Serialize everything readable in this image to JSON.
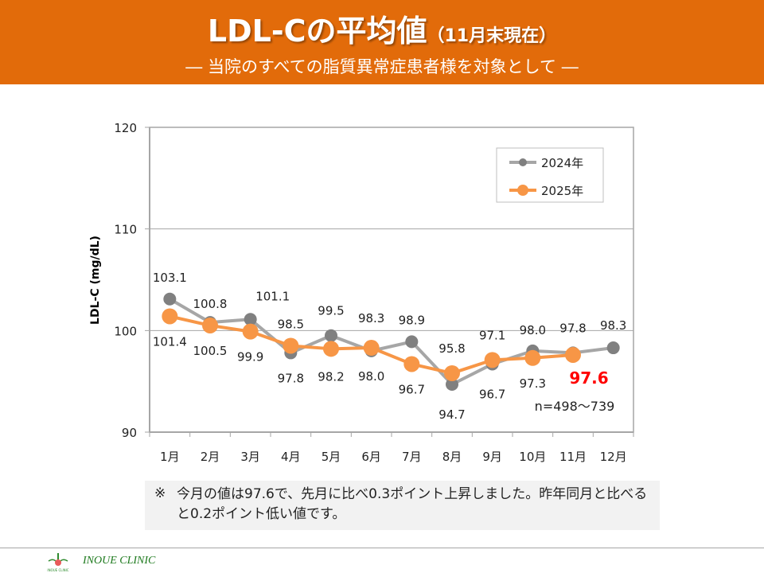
{
  "header": {
    "title_main": "LDL-Cの平均値",
    "title_sub": "（11月末現在）",
    "subtitle": "―  当院のすべての脂質異常症患者様を対象として  ―"
  },
  "colors": {
    "header_bg": "#e26b0a",
    "series_2024": "#a6a6a6",
    "series_2024_marker": "#808080",
    "series_2025": "#f79646",
    "highlight": "#ff0000",
    "note_bg": "#f2f2f2",
    "clinic_text": "#1e7a1e"
  },
  "chart_data": {
    "type": "line",
    "title": "",
    "xlabel": "",
    "ylabel": "LDL-C (mg/dL)",
    "ylim": [
      90,
      120
    ],
    "yticks": [
      90,
      100,
      110,
      120
    ],
    "ytick_labels": [
      "90",
      "100",
      "110",
      "120"
    ],
    "grid": true,
    "legend_position": "top-right",
    "categories": [
      "1月",
      "2月",
      "3月",
      "4月",
      "5月",
      "6月",
      "7月",
      "8月",
      "9月",
      "10月",
      "11月",
      "12月"
    ],
    "series": [
      {
        "name": "2024年",
        "values": [
          103.1,
          100.8,
          101.1,
          97.8,
          99.5,
          98.0,
          98.9,
          94.7,
          96.7,
          98.0,
          97.8,
          98.3
        ],
        "labels": [
          "103.1",
          "100.8",
          "101.1",
          "97.8",
          "99.5",
          "98.0",
          "98.9",
          "94.7",
          "96.7",
          "98.0",
          "97.8",
          "98.3"
        ]
      },
      {
        "name": "2025年",
        "values": [
          101.4,
          100.5,
          99.9,
          98.5,
          98.2,
          98.3,
          96.7,
          95.8,
          97.1,
          97.3,
          97.6,
          null
        ],
        "labels": [
          "101.4",
          "100.5",
          "99.9",
          "98.5",
          "98.2",
          "98.3",
          "96.7",
          "95.8",
          "97.1",
          "97.3",
          "97.6",
          ""
        ]
      }
    ],
    "annotations": {
      "highlight_value": "97.6",
      "sample_size": "n=498～739"
    }
  },
  "note": {
    "mark": "※",
    "text": "今月の値は97.6で、先月に比べ0.3ポイント上昇しました。昨年同月と比べると0.2ポイント低い値です。"
  },
  "footer": {
    "clinic_name": "INOUE CLINIC",
    "logo_caption": "INOUE CLINIC"
  }
}
